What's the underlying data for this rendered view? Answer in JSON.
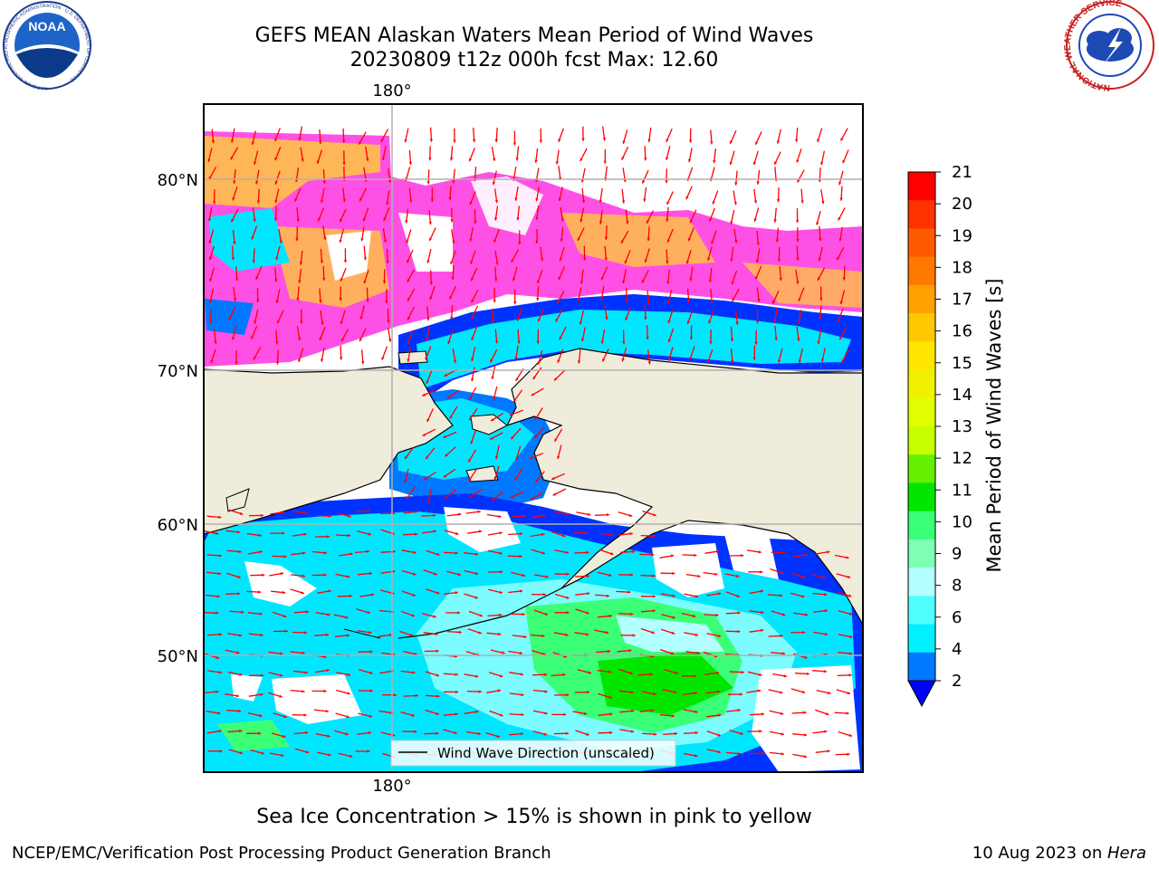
{
  "header": {
    "title_line1": "GEFS MEAN Alaskan Waters Mean Period of Wind Waves",
    "title_line2": "20230809 t12z 000h fcst   Max: 12.60",
    "left_logo_text": "NOAA",
    "left_logo_ring_text": "NATIONAL OCEANIC AND ATMOSPHERIC ADMINISTRATION · U.S. DEPARTMENT OF COMMERCE",
    "right_logo_ring_text": "NATIONAL WEATHER SERVICE"
  },
  "map": {
    "lon_label_top": "180°",
    "lon_label_bottom": "180°",
    "lat_labels": [
      "80°N",
      "70°N",
      "60°N",
      "50°N"
    ],
    "legend_label": "Wind Wave Direction (unscaled)",
    "colors": {
      "land": "#efecdc",
      "open_water": "#ffffff",
      "deep_blue": "#0032ff",
      "mid_blue": "#0078ff",
      "cyan": "#00e6ff",
      "light_cyan": "#7dfcff",
      "pale_cyan": "#b4ffff",
      "green": "#3cff78",
      "bright_green": "#00e600",
      "ice_pink": "#ff50e6",
      "ice_yellow": "#ffc83c",
      "arrow": "#ff0000"
    }
  },
  "colorbar": {
    "label": "Mean Period of Wind Waves [s]",
    "ticks": [
      "21",
      "20",
      "19",
      "18",
      "17",
      "16",
      "15",
      "14",
      "13",
      "12",
      "11",
      "10",
      "9",
      "8",
      "6",
      "4",
      "2"
    ],
    "colors": [
      "#ff0000",
      "#ff3200",
      "#ff5a00",
      "#ff7800",
      "#ffa000",
      "#ffc800",
      "#ffe600",
      "#f0f000",
      "#e1ff00",
      "#c8ff00",
      "#64f000",
      "#00e600",
      "#3cff78",
      "#7dffb4",
      "#b4ffff",
      "#50ffff",
      "#00f0ff",
      "#0078ff"
    ],
    "extend_color": "#0000ff"
  },
  "footer": {
    "note": "Sea Ice Concentration > 15% is shown in pink to yellow",
    "credit": "NCEP/EMC/Verification Post Processing Product Generation Branch",
    "date_prefix": "10 Aug 2023 on ",
    "machine": "Hera"
  }
}
